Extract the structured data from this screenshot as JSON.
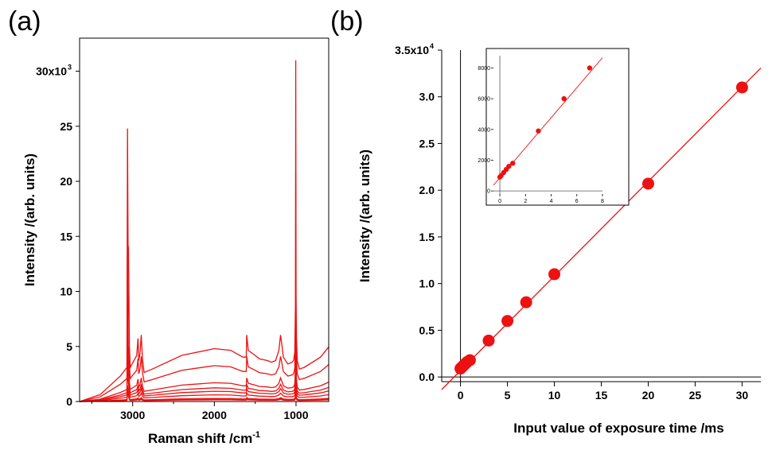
{
  "panel_a_label": "(a)",
  "panel_b_label": "(b)",
  "chart_data": [
    {
      "panel": "(a)",
      "type": "line",
      "xlabel": "Raman shift /cm",
      "xlabel_sup": "-1",
      "ylabel": "Intensity /(arb. units)",
      "xlim": [
        3650,
        600
      ],
      "ylim": [
        0,
        33000
      ],
      "x_reversed": true,
      "x_ticks": [
        3000,
        2000,
        1000
      ],
      "y_ticks": [
        0,
        5000,
        10000,
        15000,
        20000,
        25000,
        30000
      ],
      "y_tick_labels": [
        "0",
        "5",
        "10",
        "15",
        "20",
        "25",
        "30x10"
      ],
      "y_tick_top_sup": "3",
      "color": "#ee1111",
      "x": [
        3650,
        3400,
        3150,
        3070,
        3063,
        3057,
        3052,
        3040,
        3030,
        2950,
        2935,
        2925,
        2910,
        2895,
        2880,
        2860,
        2760,
        2400,
        2000,
        1800,
        1650,
        1610,
        1604,
        1595,
        1585,
        1500,
        1450,
        1350,
        1300,
        1250,
        1210,
        1190,
        1170,
        1155,
        1100,
        1050,
        1030,
        1015,
        1006,
        1003,
        1000,
        995,
        985,
        960,
        900,
        700,
        600
      ],
      "shape": [
        0.0,
        0.2,
        0.75,
        1.0,
        8.0,
        11.5,
        4.5,
        1.6,
        1.0,
        1.35,
        1.85,
        1.2,
        1.4,
        1.95,
        1.25,
        0.85,
        0.95,
        1.35,
        1.55,
        1.5,
        1.3,
        1.3,
        1.95,
        1.75,
        1.5,
        1.35,
        1.25,
        1.2,
        1.15,
        1.2,
        1.5,
        1.95,
        1.6,
        1.3,
        1.1,
        1.15,
        1.2,
        1.45,
        3.0,
        4.5,
        3.0,
        1.9,
        1.2,
        0.95,
        1.0,
        1.3,
        1.6
      ],
      "series": [
        {
          "scale": 3.1,
          "peak1000": 31000,
          "peak3060": 14200
        },
        {
          "scale": 2.1,
          "peak1000": 20700,
          "peak3060": 8000
        },
        {
          "scale": 1.1,
          "peak1000": 11000,
          "peak3060": 4300
        },
        {
          "scale": 0.8,
          "peak1000": 8000,
          "peak3060": 3300
        },
        {
          "scale": 0.6,
          "peak1000": 6000,
          "peak3060": 2600
        },
        {
          "scale": 0.39,
          "peak1000": 3900,
          "peak3060": 1900
        },
        {
          "scale": 0.18,
          "peak1000": 1800,
          "peak3060": 1100
        },
        {
          "scale": 0.14,
          "peak1000": 1400,
          "peak3060": 900
        },
        {
          "scale": 0.1,
          "peak1000": 1000,
          "peak3060": 700
        }
      ]
    },
    {
      "panel": "(b)",
      "type": "scatter",
      "xlabel": "Input value of exposure time /ms",
      "ylabel": "Intensity /(arb. units)",
      "xlim": [
        -2,
        32
      ],
      "ylim": [
        -500,
        35000
      ],
      "x_ticks": [
        0,
        5,
        10,
        15,
        20,
        25,
        30
      ],
      "y_ticks": [
        0,
        5000,
        10000,
        15000,
        20000,
        25000,
        30000,
        35000
      ],
      "y_tick_labels": [
        "0.0",
        "0.5",
        "1.0",
        "1.5",
        "2.0",
        "2.5",
        "3.0",
        "3.5x10"
      ],
      "y_tick_top_sup": "4",
      "color": "#ee1111",
      "x": [
        0.0,
        0.1,
        0.3,
        0.5,
        0.7,
        1.0,
        3.0,
        5.0,
        7.0,
        10.0,
        20.0,
        30.0
      ],
      "y": [
        900,
        1000,
        1200,
        1400,
        1600,
        1800,
        3900,
        6000,
        8000,
        11000,
        20700,
        31000
      ],
      "fit_line": {
        "x": [
          -2,
          32
        ],
        "y": [
          -1340,
          33080
        ]
      },
      "inset": {
        "type": "scatter",
        "xlim": [
          -0.5,
          8
        ],
        "ylim": [
          -200,
          8800
        ],
        "x_ticks": [
          0,
          2,
          4,
          6,
          8
        ],
        "y_ticks": [
          0,
          2000,
          4000,
          6000,
          8000
        ],
        "x": [
          0.0,
          0.1,
          0.3,
          0.5,
          0.7,
          1.0,
          3.0,
          5.0,
          7.0
        ],
        "y": [
          900,
          1000,
          1200,
          1400,
          1600,
          1800,
          3900,
          6000,
          8000
        ],
        "fit_line": {
          "x": [
            -0.5,
            8
          ],
          "y": [
            370,
            8670
          ]
        }
      }
    }
  ]
}
